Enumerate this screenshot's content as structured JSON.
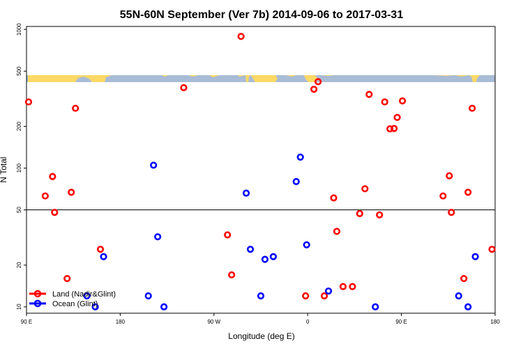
{
  "chart_data": {
    "type": "scatter",
    "title": "55N-60N September (Ver 7b)   2014-09-06 to 2017-03-31",
    "xlabel": "Longitude (deg E)",
    "ylabel": "N Total",
    "x_ticks": [
      {
        "value": 90,
        "label": "90 E"
      },
      {
        "value": 180,
        "label": "180"
      },
      {
        "value": 270,
        "label": "90 W"
      },
      {
        "value": 360,
        "label": "0"
      },
      {
        "value": 450,
        "label": "90 E"
      },
      {
        "value": 540,
        "label": "180"
      }
    ],
    "xlim": [
      90,
      540
    ],
    "y_scale": "log",
    "y_ticks": [
      10,
      20,
      50,
      100,
      200,
      500,
      1000
    ],
    "ylim": [
      9,
      1050
    ],
    "reference_line": 50,
    "legend_position": "bottom-left",
    "series": [
      {
        "name": "Land (Nadir&Glint)",
        "color": "#ff0000",
        "points": [
          {
            "x": 92,
            "y": 300
          },
          {
            "x": 108,
            "y": 63
          },
          {
            "x": 115,
            "y": 87
          },
          {
            "x": 117,
            "y": 48
          },
          {
            "x": 129,
            "y": 16
          },
          {
            "x": 133,
            "y": 67
          },
          {
            "x": 137,
            "y": 270
          },
          {
            "x": 161,
            "y": 26
          },
          {
            "x": 241,
            "y": 380
          },
          {
            "x": 283,
            "y": 33
          },
          {
            "x": 287,
            "y": 17
          },
          {
            "x": 296,
            "y": 890
          },
          {
            "x": 358,
            "y": 12
          },
          {
            "x": 366,
            "y": 370
          },
          {
            "x": 370,
            "y": 420
          },
          {
            "x": 376,
            "y": 12
          },
          {
            "x": 385,
            "y": 61
          },
          {
            "x": 388,
            "y": 35
          },
          {
            "x": 394,
            "y": 14
          },
          {
            "x": 403,
            "y": 14
          },
          {
            "x": 410,
            "y": 47
          },
          {
            "x": 415,
            "y": 71
          },
          {
            "x": 419,
            "y": 340
          },
          {
            "x": 429,
            "y": 46
          },
          {
            "x": 434,
            "y": 300
          },
          {
            "x": 439,
            "y": 192
          },
          {
            "x": 443,
            "y": 193
          },
          {
            "x": 446,
            "y": 232
          },
          {
            "x": 451,
            "y": 305
          },
          {
            "x": 490,
            "y": 63
          },
          {
            "x": 496,
            "y": 88
          },
          {
            "x": 498,
            "y": 48
          },
          {
            "x": 510,
            "y": 16
          },
          {
            "x": 514,
            "y": 67
          },
          {
            "x": 518,
            "y": 270
          },
          {
            "x": 537,
            "y": 26
          }
        ]
      },
      {
        "name": "Ocean (Glint)",
        "color": "#0000ff",
        "points": [
          {
            "x": 148,
            "y": 12
          },
          {
            "x": 156,
            "y": 10
          },
          {
            "x": 164,
            "y": 23
          },
          {
            "x": 207,
            "y": 12
          },
          {
            "x": 212,
            "y": 105
          },
          {
            "x": 216,
            "y": 32
          },
          {
            "x": 222,
            "y": 10
          },
          {
            "x": 301,
            "y": 66
          },
          {
            "x": 305,
            "y": 26
          },
          {
            "x": 315,
            "y": 12
          },
          {
            "x": 319,
            "y": 22
          },
          {
            "x": 327,
            "y": 23
          },
          {
            "x": 349,
            "y": 80
          },
          {
            "x": 353,
            "y": 120
          },
          {
            "x": 359,
            "y": 28
          },
          {
            "x": 380,
            "y": 13
          },
          {
            "x": 425,
            "y": 10
          },
          {
            "x": 505,
            "y": 12
          },
          {
            "x": 514,
            "y": 10
          },
          {
            "x": 521,
            "y": 23
          }
        ]
      }
    ]
  }
}
